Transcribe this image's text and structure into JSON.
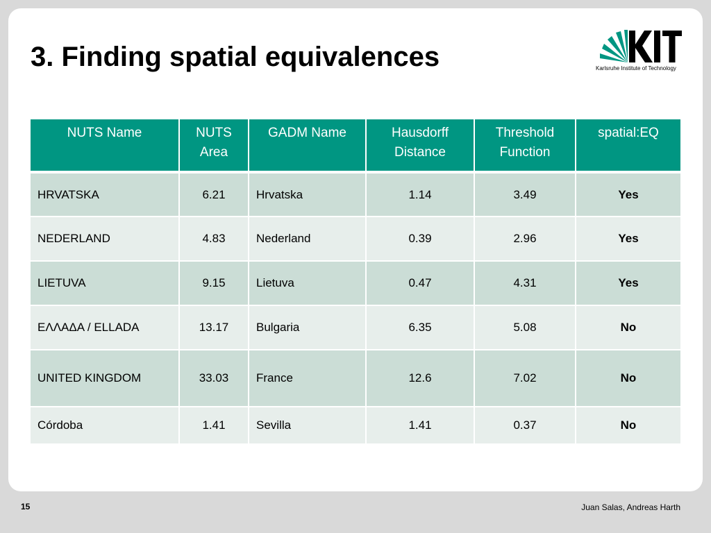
{
  "title": "3. Finding spatial equivalences",
  "logo": {
    "text": "KIT",
    "subtitle": "Karlsruhe Institute of Technology",
    "color": "#009682"
  },
  "table": {
    "headers": [
      "NUTS Name",
      "NUTS Area",
      "GADM Name",
      "Hausdorff Distance",
      "Threshold Function",
      "spatial:EQ"
    ],
    "rows": [
      [
        "HRVATSKA",
        "6.21",
        "Hrvatska",
        "1.14",
        "3.49",
        "Yes"
      ],
      [
        "NEDERLAND",
        "4.83",
        "Nederland",
        "0.39",
        "2.96",
        "Yes"
      ],
      [
        "LIETUVA",
        "9.15",
        "Lietuva",
        "0.47",
        "4.31",
        "Yes"
      ],
      [
        "ΕΛΛΑΔΑ / ELLADA",
        "13.17",
        "Bulgaria",
        "6.35",
        "5.08",
        "No"
      ],
      [
        "UNITED KINGDOM",
        "33.03",
        "France",
        "12.6",
        "7.02",
        "No"
      ],
      [
        "Córdoba",
        "1.41",
        "Sevilla",
        "1.41",
        "0.37",
        "No"
      ]
    ],
    "header_color": "#009682",
    "row_color_dark": "#cbddd6",
    "row_color_light": "#e7eeeb"
  },
  "footer": {
    "page_number": "15",
    "authors": "Juan Salas, Andreas Harth"
  }
}
